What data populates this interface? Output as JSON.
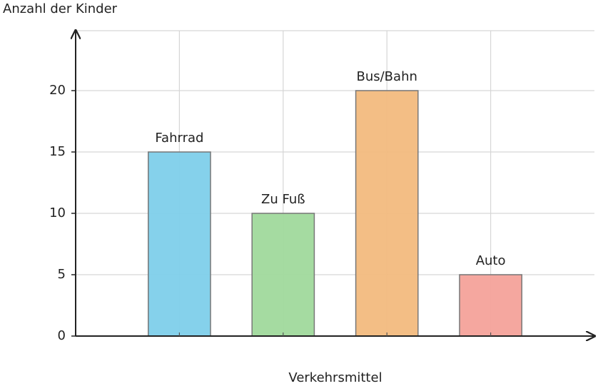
{
  "chart_data": {
    "type": "bar",
    "y_label": "Anzahl der Kinder",
    "x_label": "Verkehrsmittel",
    "categories": [
      "Fahrrad",
      "Zu Fuß",
      "Bus/Bahn",
      "Auto"
    ],
    "values": [
      15,
      10,
      20,
      5
    ],
    "colors": [
      "#7ecfea",
      "#a0d99c",
      "#f2bb7e",
      "#f4a29a"
    ],
    "ylim": [
      0,
      25
    ],
    "yticks": [
      0,
      5,
      10,
      15,
      20
    ],
    "grid": true
  }
}
